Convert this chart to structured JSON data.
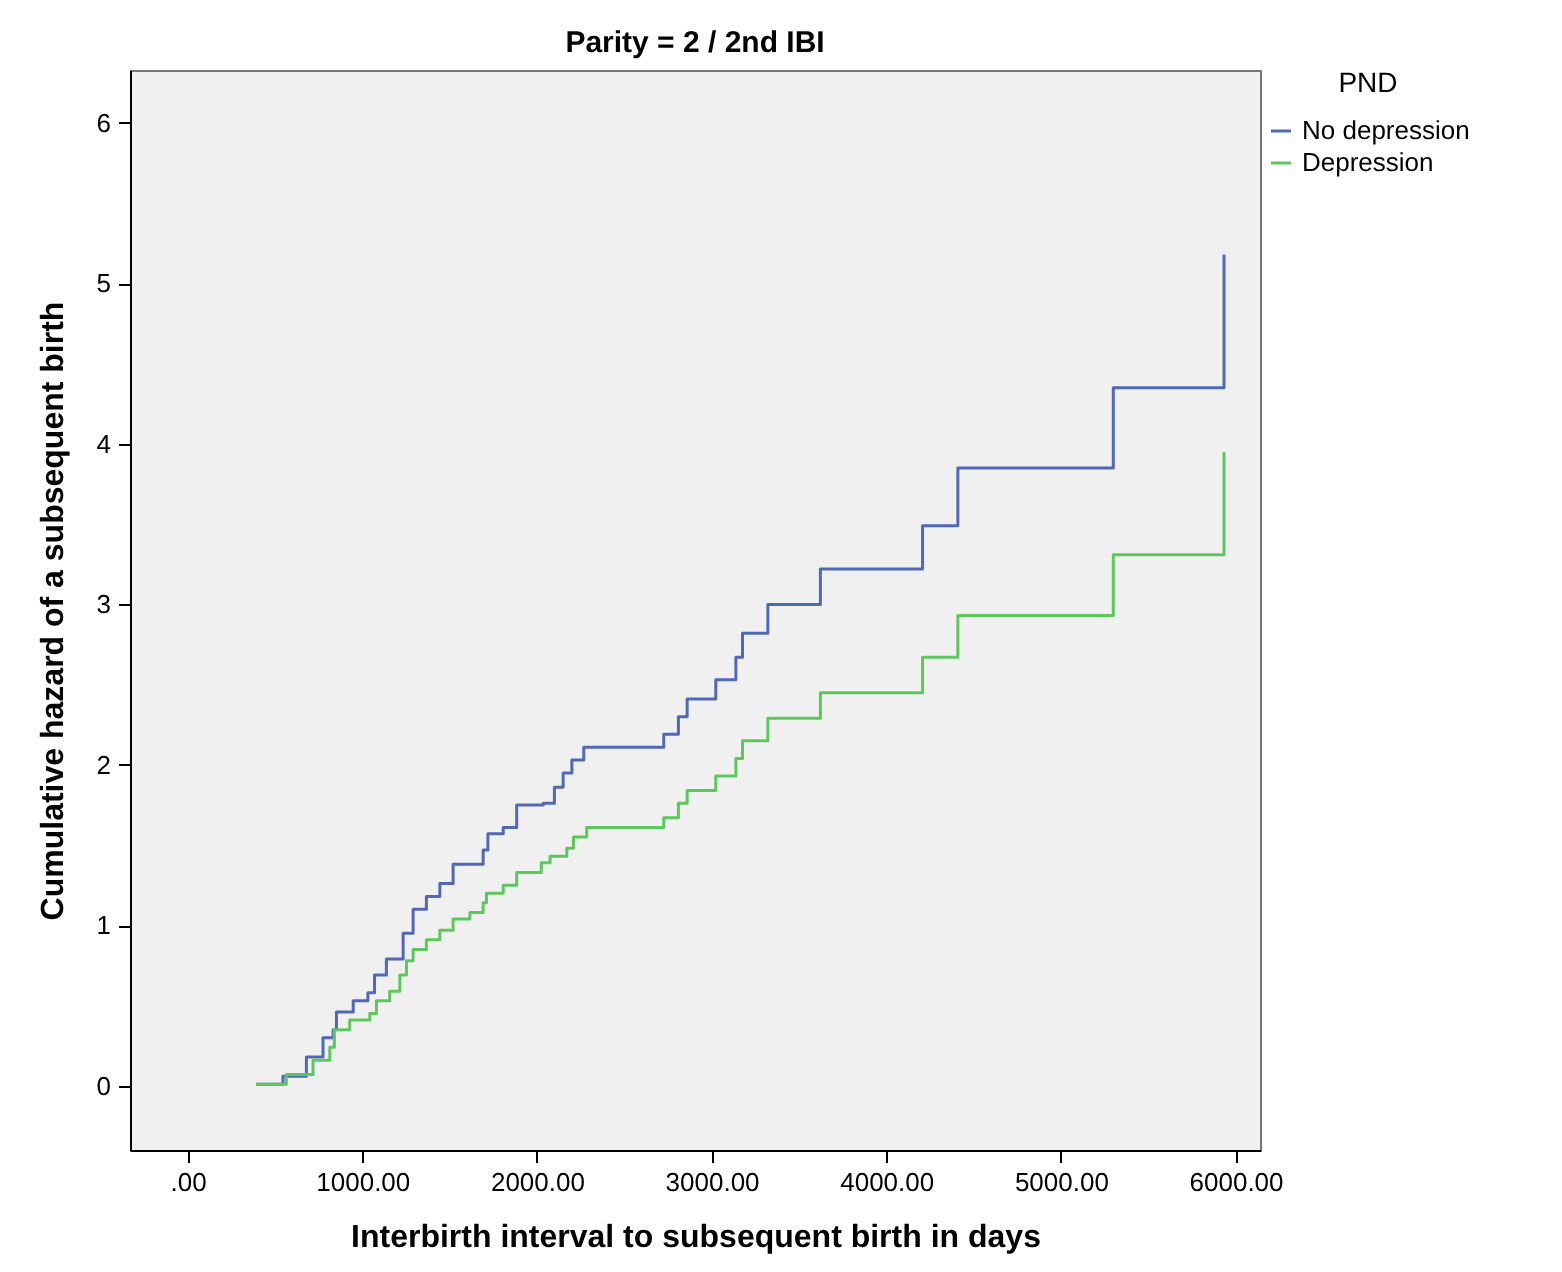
{
  "chart_data": {
    "type": "step",
    "title": "Parity = 2 / 2nd IBI",
    "xlabel": "Interbirth interval to subsequent birth in days",
    "ylabel": "Cumulative hazard of a subsequent birth",
    "legend_title": "PND",
    "legend": "top right",
    "xlim": [
      -330,
      6140
    ],
    "ylim": [
      -0.4,
      6.33
    ],
    "xticks": [
      {
        "value": 0,
        "label": ".00"
      },
      {
        "value": 1000,
        "label": "1000.00"
      },
      {
        "value": 2000,
        "label": "2000.00"
      },
      {
        "value": 3000,
        "label": "3000.00"
      },
      {
        "value": 4000,
        "label": "4000.00"
      },
      {
        "value": 5000,
        "label": "5000.00"
      },
      {
        "value": 6000,
        "label": "6000.00"
      }
    ],
    "yticks": [
      0,
      1,
      2,
      3,
      4,
      5,
      6
    ],
    "grid": false,
    "series": [
      {
        "name": "No depression",
        "color": "#5068b8",
        "x": [
          393,
          546,
          680,
          775,
          833,
          852,
          948,
          1032,
          1070,
          1138,
          1234,
          1291,
          1367,
          1444,
          1520,
          1692,
          1719,
          1807,
          1884,
          2036,
          2100,
          2150,
          2200,
          2268,
          2726,
          2810,
          2860,
          3024,
          3139,
          3177,
          3322,
          3623,
          4208,
          4410,
          5300,
          5934
        ],
        "values": [
          0.01,
          0.06,
          0.18,
          0.3,
          0.35,
          0.46,
          0.53,
          0.58,
          0.69,
          0.79,
          0.95,
          1.1,
          1.18,
          1.26,
          1.38,
          1.47,
          1.57,
          1.61,
          1.75,
          1.76,
          1.86,
          1.95,
          2.03,
          2.11,
          2.19,
          2.3,
          2.41,
          2.53,
          2.67,
          2.82,
          3.0,
          3.22,
          3.49,
          3.85,
          4.35,
          5.18
        ]
      },
      {
        "name": "Depression",
        "color": "#5cc85c",
        "x": [
          393,
          565,
          718,
          814,
          840,
          928,
          1043,
          1081,
          1157,
          1215,
          1253,
          1291,
          1367,
          1444,
          1520,
          1616,
          1692,
          1711,
          1807,
          1884,
          2025,
          2075,
          2171,
          2209,
          2285,
          2726,
          2810,
          2860,
          3024,
          3139,
          3177,
          3322,
          3623,
          4208,
          4410,
          5300,
          5934
        ],
        "values": [
          0.01,
          0.07,
          0.16,
          0.24,
          0.35,
          0.41,
          0.45,
          0.53,
          0.59,
          0.69,
          0.78,
          0.85,
          0.91,
          0.97,
          1.04,
          1.08,
          1.14,
          1.2,
          1.25,
          1.33,
          1.39,
          1.43,
          1.48,
          1.55,
          1.61,
          1.67,
          1.76,
          1.84,
          1.93,
          2.04,
          2.15,
          2.29,
          2.45,
          2.67,
          2.93,
          3.31,
          3.95
        ]
      }
    ]
  }
}
